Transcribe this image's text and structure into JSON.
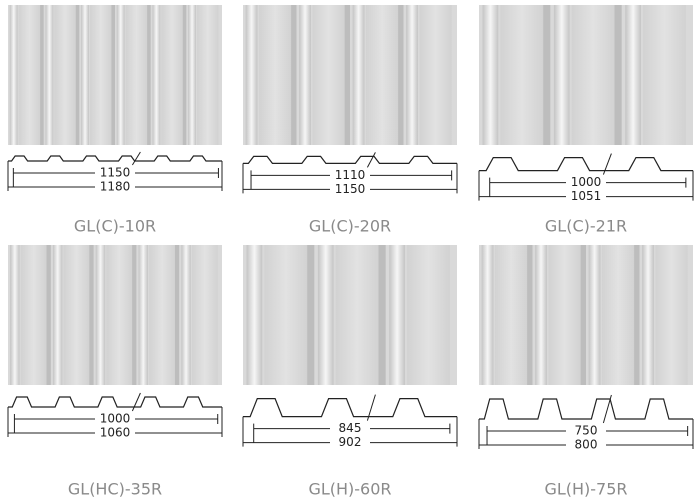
{
  "items": [
    {
      "name": "GL(C)-10R",
      "inner": 1150,
      "outer": 1180
    },
    {
      "name": "GL(C)-20R",
      "inner": 1110,
      "outer": 1150
    },
    {
      "name": "GL(C)-21R",
      "inner": 1000,
      "outer": 1051
    },
    {
      "name": "GL(HC)-35R",
      "inner": 1000,
      "outer": 1060
    },
    {
      "name": "GL(H)-60R",
      "inner": 845,
      "outer": 902
    },
    {
      "name": "GL(H)-75R",
      "inner": 750,
      "outer": 800
    }
  ]
}
